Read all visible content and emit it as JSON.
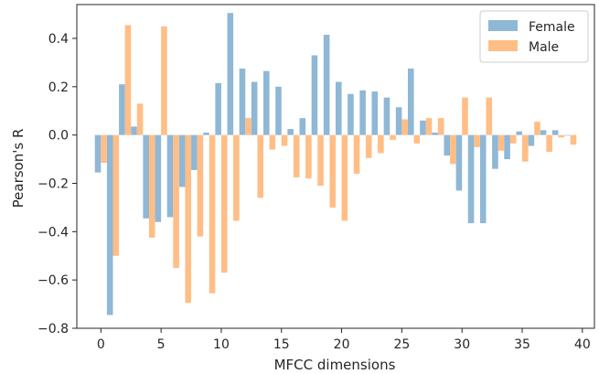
{
  "chart_data": {
    "type": "bar",
    "xlabel": "MFCC dimensions",
    "ylabel": "Pearson's R",
    "xlim": [
      -2,
      41
    ],
    "ylim": [
      -0.8,
      0.54
    ],
    "xticks": [
      0,
      5,
      10,
      15,
      20,
      25,
      30,
      35,
      40
    ],
    "yticks": [
      -0.8,
      -0.6,
      -0.4,
      -0.2,
      0.0,
      0.2,
      0.4
    ],
    "ytick_labels": [
      "−0.8",
      "−0.6",
      "−0.4",
      "−0.2",
      "0.0",
      "0.2",
      "0.4"
    ],
    "legend_position": "top-right",
    "grid": false,
    "x": [
      0,
      1,
      2,
      3,
      4,
      5,
      6,
      7,
      8,
      9,
      10,
      11,
      12,
      13,
      14,
      15,
      16,
      17,
      18,
      19,
      20,
      21,
      22,
      23,
      24,
      25,
      26,
      27,
      28,
      29,
      30,
      31,
      32,
      33,
      34,
      35,
      36,
      37,
      38,
      39
    ],
    "series": [
      {
        "name": "Female",
        "color": "#8fb7d6",
        "values": [
          -0.155,
          -0.745,
          0.21,
          0.035,
          -0.345,
          -0.36,
          -0.34,
          -0.215,
          -0.145,
          0.01,
          0.215,
          0.505,
          0.275,
          0.22,
          0.265,
          0.2,
          0.025,
          0.07,
          0.33,
          0.415,
          0.22,
          0.17,
          0.185,
          0.18,
          0.155,
          0.115,
          0.275,
          0.06,
          0.01,
          -0.085,
          -0.23,
          -0.365,
          -0.365,
          -0.14,
          -0.1,
          0.015,
          -0.045,
          0.02,
          0.02,
          0.0
        ]
      },
      {
        "name": "Male",
        "color": "#ffbe86",
        "values": [
          -0.115,
          -0.5,
          0.455,
          0.13,
          -0.425,
          0.45,
          -0.55,
          -0.695,
          -0.42,
          -0.655,
          -0.57,
          -0.355,
          0.07,
          -0.26,
          -0.06,
          -0.045,
          -0.175,
          -0.18,
          -0.21,
          -0.3,
          -0.355,
          -0.16,
          -0.095,
          -0.075,
          -0.02,
          0.065,
          -0.035,
          0.07,
          0.07,
          -0.12,
          0.155,
          -0.05,
          0.155,
          -0.065,
          -0.035,
          -0.11,
          0.055,
          -0.07,
          -0.01,
          -0.04
        ]
      }
    ]
  }
}
